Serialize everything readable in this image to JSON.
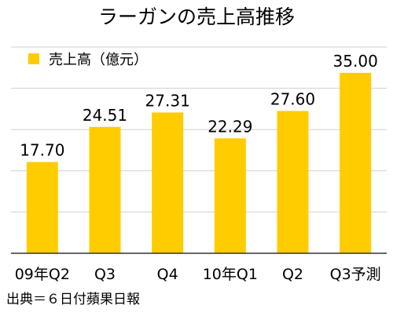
{
  "chart_data": {
    "type": "bar",
    "title": "ラーガンの売上高推移",
    "categories": [
      "09年Q2",
      "Q3",
      "Q4",
      "10年Q1",
      "Q2",
      "Q3予測"
    ],
    "series": [
      {
        "name": "売上高（億元）",
        "values": [
          17.7,
          24.51,
          27.31,
          22.29,
          27.6,
          35.0
        ],
        "labels": [
          "17.70",
          "24.51",
          "27.31",
          "22.29",
          "27.60",
          "35.00"
        ],
        "color": "#ffcc00"
      }
    ],
    "ylim": [
      0,
      40
    ],
    "grid": true,
    "legend_position": "top-left",
    "source": "出典＝６日付蘋果日報"
  }
}
